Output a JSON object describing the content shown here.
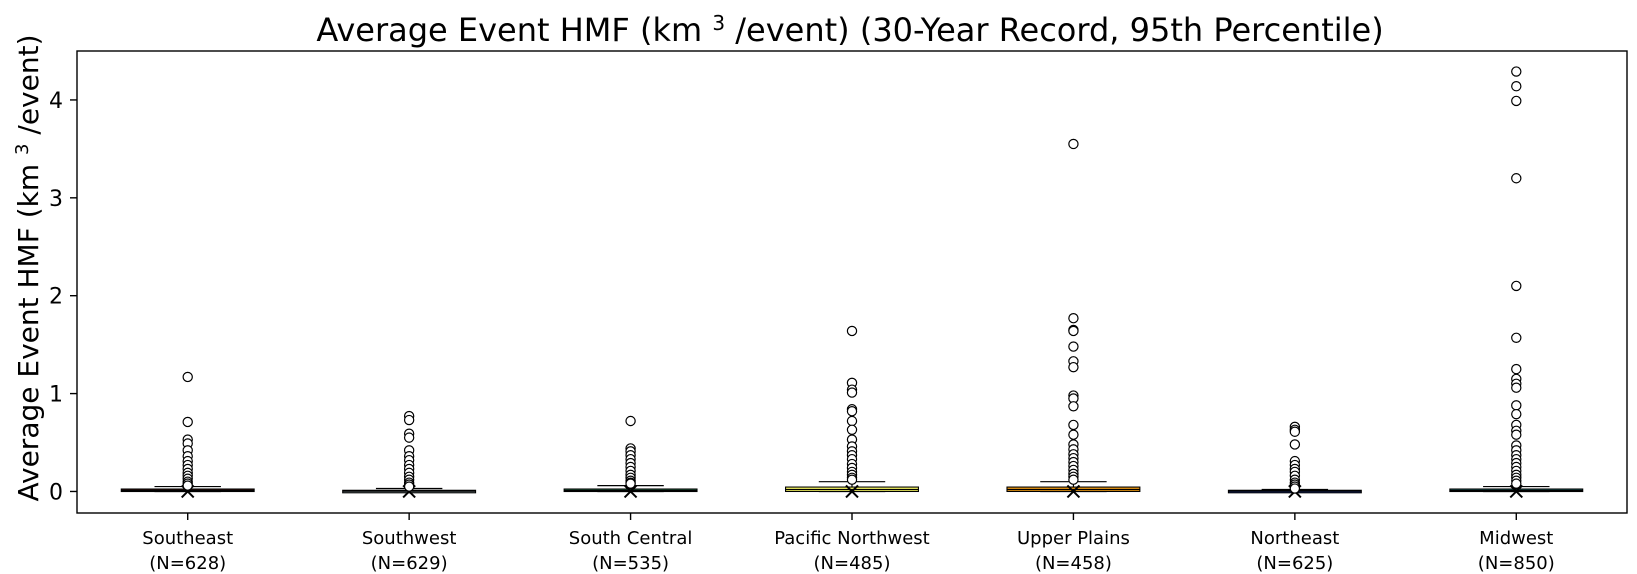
{
  "chart_data": {
    "type": "box",
    "title_parts": [
      "Average Event HMF (km",
      "3",
      "/event) (30-Year Record, 95th Percentile)"
    ],
    "ylabel_parts": [
      "Average Event HMF (km",
      "3",
      "/event)"
    ],
    "xlabel": "",
    "ylim": [
      -0.22,
      4.5
    ],
    "yticks": [
      0,
      1,
      2,
      3,
      4
    ],
    "ytick_labels": [
      "0",
      "1",
      "2",
      "3",
      "4"
    ],
    "grid": false,
    "categories": [
      {
        "name": "Southeast",
        "count_label": "(N=628)",
        "color": "#c0392b",
        "q1": 0.0,
        "median": 0.012,
        "q3": 0.025,
        "whisker_low": 0.0,
        "whisker_high": 0.05,
        "outliers": [
          1.17,
          0.71,
          0.53,
          0.49,
          0.42,
          0.36,
          0.31,
          0.27,
          0.23,
          0.19,
          0.16,
          0.13,
          0.1,
          0.08,
          0.06
        ]
      },
      {
        "name": "Southwest",
        "count_label": "(N=629)",
        "color": "#95a5a6",
        "q1": 0.0,
        "median": 0.004,
        "q3": 0.012,
        "whisker_low": 0.0,
        "whisker_high": 0.03,
        "outliers": [
          0.77,
          0.73,
          0.59,
          0.55,
          0.42,
          0.36,
          0.32,
          0.27,
          0.23,
          0.19,
          0.15,
          0.12,
          0.09,
          0.07,
          0.05
        ]
      },
      {
        "name": "South Central",
        "count_label": "(N=535)",
        "color": "#2e8b57",
        "q1": 0.0,
        "median": 0.01,
        "q3": 0.025,
        "whisker_low": 0.0,
        "whisker_high": 0.06,
        "outliers": [
          0.72,
          0.44,
          0.41,
          0.37,
          0.33,
          0.29,
          0.25,
          0.21,
          0.17,
          0.14,
          0.11,
          0.09,
          0.08
        ]
      },
      {
        "name": "Pacific Northwest",
        "count_label": "(N=485)",
        "color": "#ffff66",
        "q1": 0.0,
        "median": 0.02,
        "q3": 0.045,
        "whisker_low": 0.0,
        "whisker_high": 0.1,
        "outliers": [
          1.64,
          1.11,
          1.04,
          1.01,
          0.84,
          0.82,
          0.72,
          0.63,
          0.53,
          0.46,
          0.41,
          0.37,
          0.33,
          0.28,
          0.24,
          0.2,
          0.17,
          0.14,
          0.12
        ]
      },
      {
        "name": "Upper Plains",
        "count_label": "(N=458)",
        "color": "#f39c12",
        "q1": 0.0,
        "median": 0.02,
        "q3": 0.045,
        "whisker_low": 0.0,
        "whisker_high": 0.1,
        "outliers": [
          3.55,
          1.77,
          1.65,
          1.64,
          1.48,
          1.33,
          1.27,
          0.98,
          0.95,
          0.87,
          0.68,
          0.58,
          0.48,
          0.43,
          0.38,
          0.34,
          0.3,
          0.26,
          0.22,
          0.18,
          0.15,
          0.12
        ]
      },
      {
        "name": "Northeast",
        "count_label": "(N=625)",
        "color": "#1f3a93",
        "q1": 0.0,
        "median": 0.004,
        "q3": 0.012,
        "whisker_low": 0.0,
        "whisker_high": 0.02,
        "outliers": [
          0.66,
          0.63,
          0.61,
          0.48,
          0.31,
          0.27,
          0.23,
          0.2,
          0.16,
          0.12,
          0.09,
          0.07,
          0.05,
          0.03
        ]
      },
      {
        "name": "Midwest",
        "count_label": "(N=850)",
        "color": "#1f7a7a",
        "q1": 0.0,
        "median": 0.01,
        "q3": 0.025,
        "whisker_low": 0.0,
        "whisker_high": 0.05,
        "outliers": [
          4.29,
          4.14,
          3.99,
          3.2,
          2.1,
          1.57,
          1.25,
          1.15,
          1.1,
          1.06,
          0.88,
          0.79,
          0.68,
          0.62,
          0.58,
          0.47,
          0.42,
          0.37,
          0.33,
          0.29,
          0.25,
          0.21,
          0.17,
          0.14,
          0.11,
          0.08
        ]
      }
    ]
  }
}
